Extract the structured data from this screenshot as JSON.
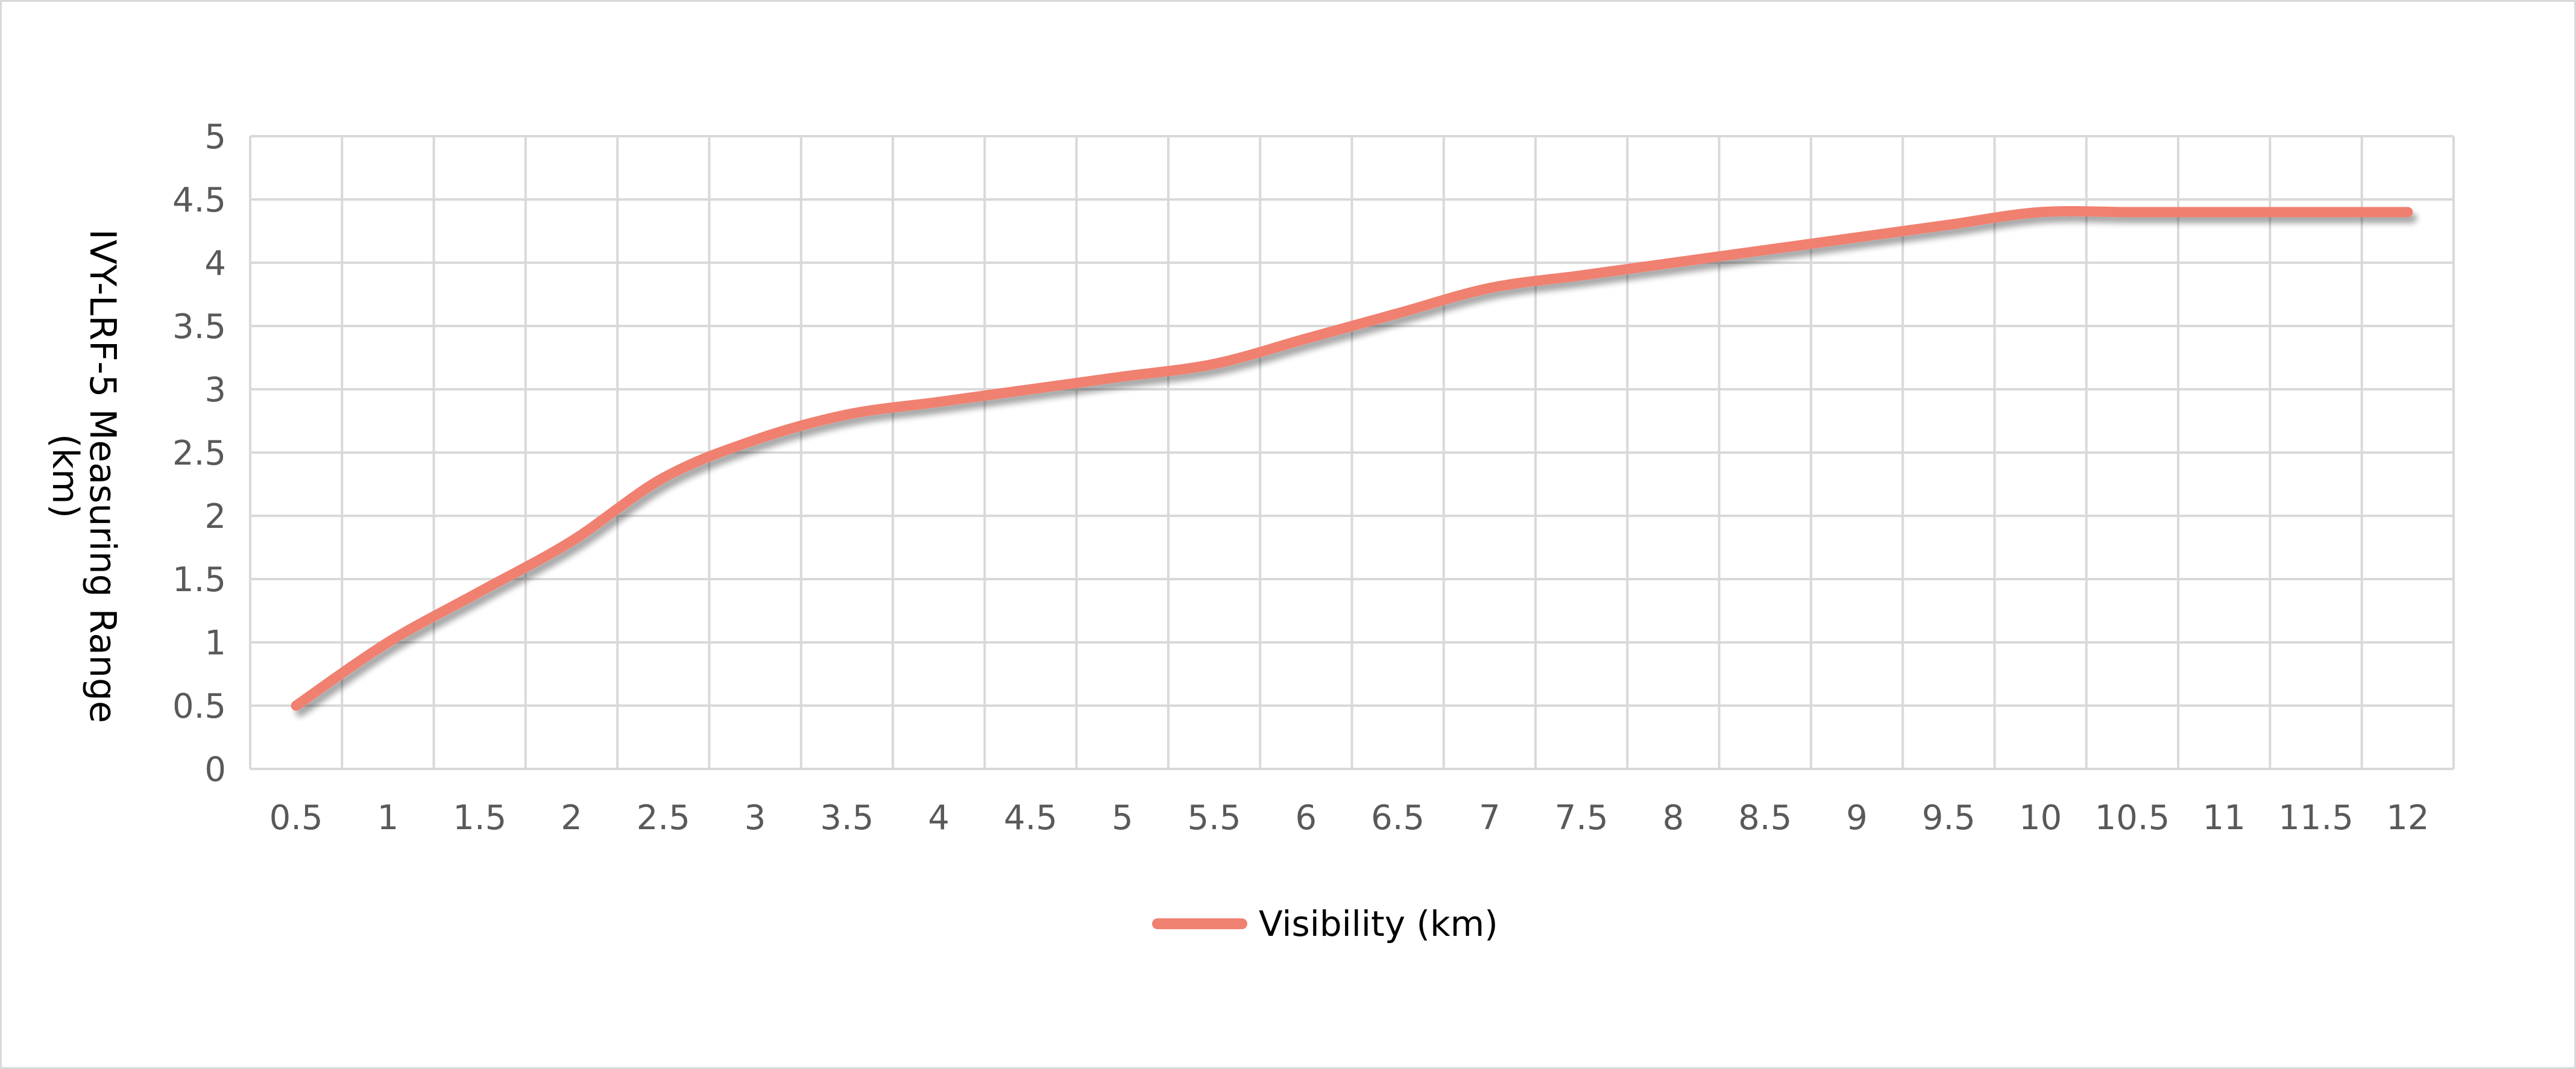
{
  "chart_data": {
    "type": "line",
    "title": "",
    "xlabel": "",
    "ylabel_lines": [
      "IVY-LRF-5 Measuring Range",
      "(km)"
    ],
    "categories": [
      "0.5",
      "1",
      "1.5",
      "2",
      "2.5",
      "3",
      "3.5",
      "4",
      "4.5",
      "5",
      "5.5",
      "6",
      "6.5",
      "7",
      "7.5",
      "8",
      "8.5",
      "9",
      "9.5",
      "10",
      "10.5",
      "11",
      "11.5",
      "12"
    ],
    "series": [
      {
        "name": "Visibility  (km)",
        "color": "#F08070",
        "values": [
          0.5,
          1.0,
          1.4,
          1.8,
          2.3,
          2.6,
          2.8,
          2.9,
          3.0,
          3.1,
          3.2,
          3.4,
          3.6,
          3.8,
          3.9,
          4.0,
          4.1,
          4.2,
          4.3,
          4.4,
          4.4,
          4.4,
          4.4,
          4.4
        ]
      }
    ],
    "yticks": [
      "0",
      "0.5",
      "1",
      "1.5",
      "2",
      "2.5",
      "3",
      "3.5",
      "4",
      "4.5",
      "5"
    ],
    "ylim": [
      0,
      5
    ],
    "grid": true,
    "legend_position": "bottom"
  }
}
